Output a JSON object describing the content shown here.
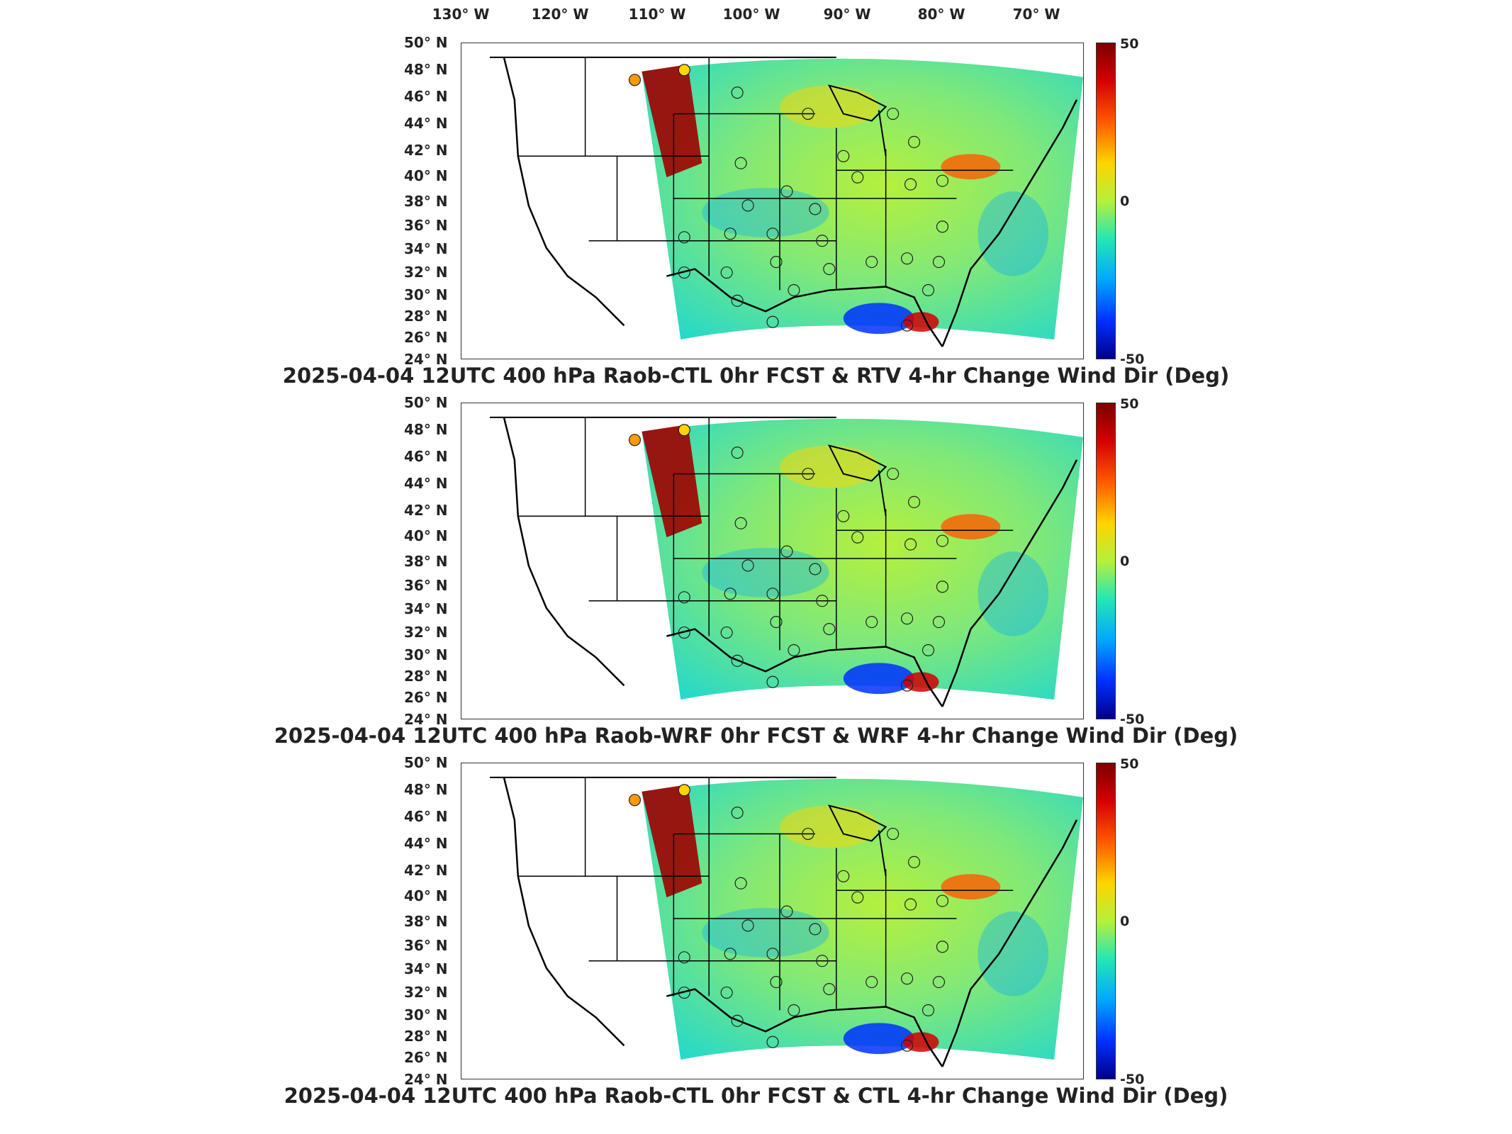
{
  "lon_labels": [
    "130° W",
    "120° W",
    "110° W",
    "100° W",
    "90° W",
    "80° W",
    "70° W"
  ],
  "lat_labels": [
    "50° N",
    "48° N",
    "46° N",
    "44° N",
    "42° N",
    "40° N",
    "38° N",
    "36° N",
    "34° N",
    "32° N",
    "30° N",
    "28° N",
    "26° N",
    "24° N"
  ],
  "colorbar": {
    "max": "50",
    "mid": "0",
    "min": "-50",
    "colors": [
      "#7a0000",
      "#d40000",
      "#ff5a00",
      "#ffd400",
      "#b6f03c",
      "#26e6b4",
      "#00a8ff",
      "#0030ff",
      "#00008a"
    ]
  },
  "panels": [
    {
      "title": "2025-04-04 12UTC 400 hPa Raob-CTL 0hr FCST & RTV 4-hr Change Wind Dir (Deg)"
    },
    {
      "title": "2025-04-04 12UTC 400 hPa Raob-WRF 0hr FCST & WRF 4-hr Change Wind Dir (Deg)"
    },
    {
      "title": "2025-04-04 12UTC 400 hPa Raob-CTL 0hr FCST & CTL 4-hr Change Wind Dir (Deg)"
    }
  ]
}
